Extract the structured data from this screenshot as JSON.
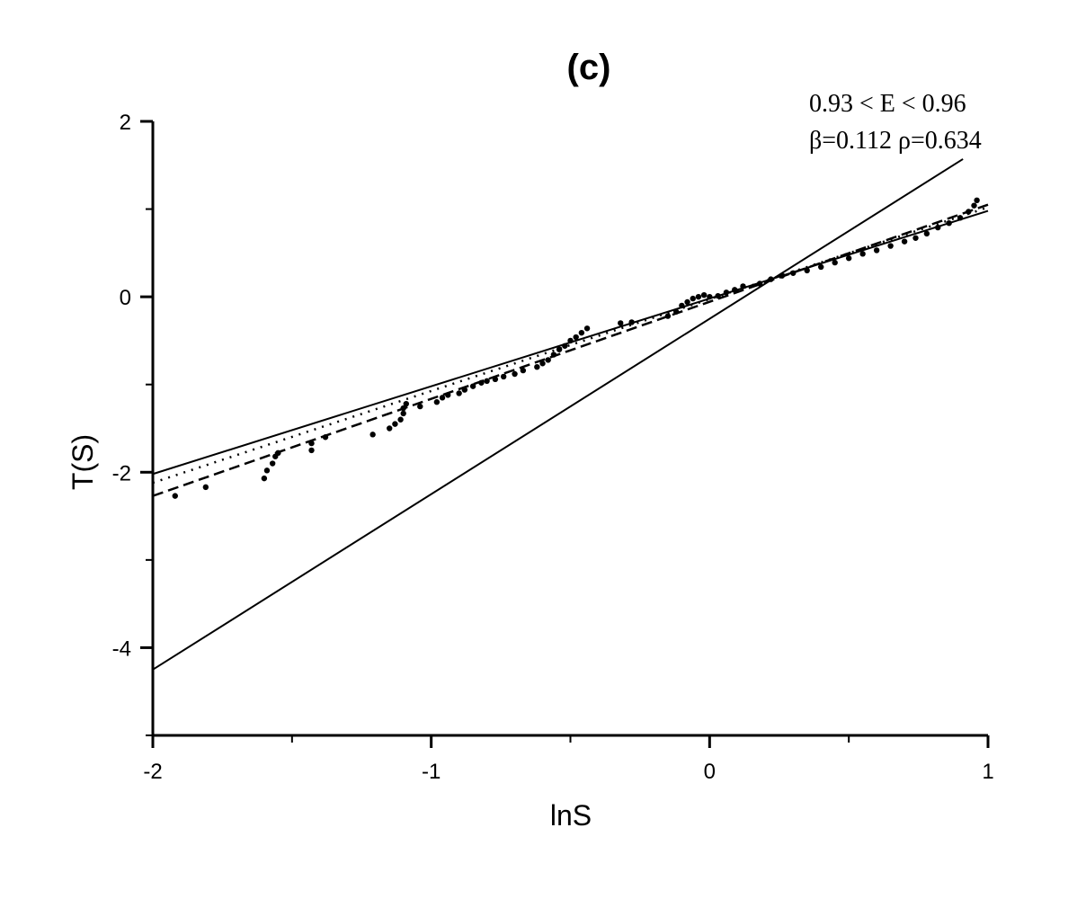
{
  "chart_data": {
    "type": "scatter",
    "title": "(c)",
    "xlabel": "lnS",
    "ylabel": "T(S)",
    "xlim": [
      -2,
      1
    ],
    "ylim": [
      -5,
      2
    ],
    "x_ticks": [
      -2,
      -1,
      0,
      1
    ],
    "x_tick_labels": [
      "-2",
      "-1",
      "0",
      "1"
    ],
    "y_ticks": [
      2,
      0,
      -2,
      -4
    ],
    "y_tick_labels": [
      "2",
      "0",
      "-2",
      "-4"
    ],
    "grid": false,
    "annotations": [
      "0.93 < E < 0.96",
      "β=0.112 ρ=0.634"
    ],
    "lines": [
      {
        "style": "solid",
        "x": [
          -2,
          0.91
        ],
        "y": [
          -4.25,
          1.57
        ]
      },
      {
        "style": "solid",
        "x": [
          -2,
          1
        ],
        "y": [
          -2.02,
          0.98
        ]
      },
      {
        "style": "dotted",
        "x": [
          -2,
          1
        ],
        "y": [
          -2.12,
          1.02
        ]
      },
      {
        "style": "dashed",
        "x": [
          -2,
          1
        ],
        "y": [
          -2.27,
          1.05
        ]
      }
    ],
    "series": [
      {
        "marker": "dot",
        "points": [
          [
            -1.92,
            -2.27
          ],
          [
            -1.81,
            -2.17
          ],
          [
            -1.6,
            -2.07
          ],
          [
            -1.59,
            -1.98
          ],
          [
            -1.57,
            -1.9
          ],
          [
            -1.56,
            -1.82
          ],
          [
            -1.55,
            -1.78
          ],
          [
            -1.43,
            -1.75
          ],
          [
            -1.43,
            -1.67
          ],
          [
            -1.38,
            -1.6
          ],
          [
            -1.21,
            -1.57
          ],
          [
            -1.15,
            -1.5
          ],
          [
            -1.13,
            -1.45
          ],
          [
            -1.11,
            -1.4
          ],
          [
            -1.1,
            -1.33
          ],
          [
            -1.1,
            -1.27
          ],
          [
            -1.09,
            -1.22
          ],
          [
            -1.04,
            -1.25
          ],
          [
            -0.98,
            -1.2
          ],
          [
            -0.96,
            -1.15
          ],
          [
            -0.94,
            -1.12
          ],
          [
            -0.9,
            -1.1
          ],
          [
            -0.88,
            -1.06
          ],
          [
            -0.85,
            -1.02
          ],
          [
            -0.82,
            -0.98
          ],
          [
            -0.8,
            -0.96
          ],
          [
            -0.77,
            -0.94
          ],
          [
            -0.74,
            -0.91
          ],
          [
            -0.7,
            -0.88
          ],
          [
            -0.67,
            -0.84
          ],
          [
            -0.62,
            -0.8
          ],
          [
            -0.6,
            -0.76
          ],
          [
            -0.58,
            -0.72
          ],
          [
            -0.56,
            -0.66
          ],
          [
            -0.54,
            -0.6
          ],
          [
            -0.52,
            -0.56
          ],
          [
            -0.5,
            -0.5
          ],
          [
            -0.48,
            -0.46
          ],
          [
            -0.46,
            -0.41
          ],
          [
            -0.44,
            -0.36
          ],
          [
            -0.32,
            -0.3
          ],
          [
            -0.28,
            -0.29
          ],
          [
            -0.15,
            -0.22
          ],
          [
            -0.12,
            -0.17
          ],
          [
            -0.1,
            -0.1
          ],
          [
            -0.08,
            -0.06
          ],
          [
            -0.06,
            -0.02
          ],
          [
            -0.04,
            0.0
          ],
          [
            -0.02,
            0.02
          ],
          [
            0.0,
            0.0
          ],
          [
            0.03,
            0.01
          ],
          [
            0.06,
            0.05
          ],
          [
            0.09,
            0.08
          ],
          [
            0.12,
            0.12
          ],
          [
            0.18,
            0.15
          ],
          [
            0.22,
            0.2
          ],
          [
            0.26,
            0.24
          ],
          [
            0.3,
            0.27
          ],
          [
            0.35,
            0.3
          ],
          [
            0.4,
            0.34
          ],
          [
            0.45,
            0.39
          ],
          [
            0.5,
            0.44
          ],
          [
            0.55,
            0.49
          ],
          [
            0.6,
            0.53
          ],
          [
            0.65,
            0.58
          ],
          [
            0.7,
            0.63
          ],
          [
            0.74,
            0.67
          ],
          [
            0.78,
            0.72
          ],
          [
            0.82,
            0.79
          ],
          [
            0.86,
            0.84
          ],
          [
            0.9,
            0.9
          ],
          [
            0.93,
            0.97
          ],
          [
            0.95,
            1.04
          ],
          [
            0.96,
            1.1
          ]
        ]
      }
    ]
  }
}
